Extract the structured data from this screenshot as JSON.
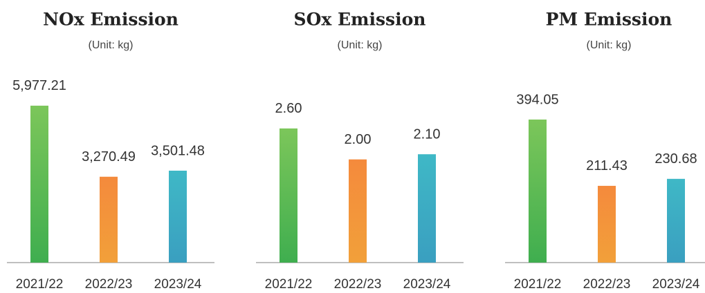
{
  "chart_data": [
    {
      "type": "bar",
      "title": "NOx Emission",
      "subtitle": "(Unit: kg)",
      "categories": [
        "2021/22",
        "2022/23",
        "2023/24"
      ],
      "values": [
        5977.21,
        3270.49,
        3501.48
      ],
      "value_labels": [
        "5,977.21",
        "3,270.49",
        "3,501.48"
      ],
      "colors": [
        "#5dbb55",
        "#f2903a",
        "#3ab0c4"
      ],
      "ylim": [
        0,
        7370
      ]
    },
    {
      "type": "bar",
      "title": "SOx Emission",
      "subtitle": "(Unit: kg)",
      "categories": [
        "2021/22",
        "2022/23",
        "2023/24"
      ],
      "values": [
        2.6,
        2.0,
        2.1
      ],
      "value_labels": [
        "2.60",
        "2.00",
        "2.10"
      ],
      "colors": [
        "#5dbb55",
        "#f2903a",
        "#3ab0c4"
      ],
      "ylim": [
        0,
        3.75
      ]
    },
    {
      "type": "bar",
      "title": "PM Emission",
      "subtitle": "(Unit: kg)",
      "categories": [
        "2021/22",
        "2022/23",
        "2023/24"
      ],
      "values": [
        394.05,
        211.43,
        230.68
      ],
      "value_labels": [
        "394.05",
        "211.43",
        "230.68"
      ],
      "colors": [
        "#5dbb55",
        "#f2903a",
        "#3ab0c4"
      ],
      "ylim": [
        0,
        533
      ]
    }
  ]
}
